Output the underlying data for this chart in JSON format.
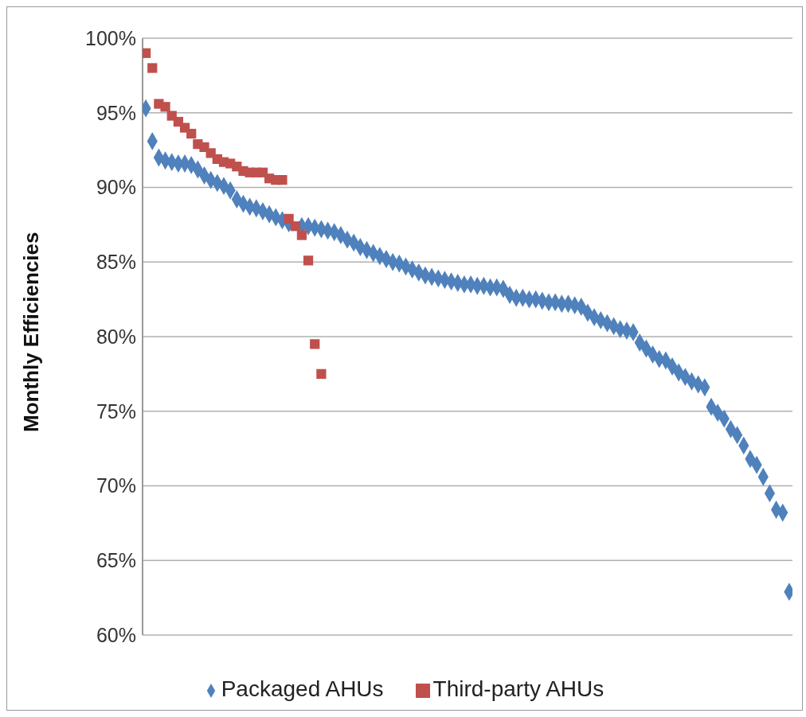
{
  "chart_data": {
    "type": "scatter",
    "ylabel": "Monthly Efficiencies",
    "categories": [
      null,
      null,
      null,
      null,
      null,
      null,
      null,
      null,
      null,
      null,
      null,
      null,
      null,
      null,
      null,
      null,
      null,
      null,
      null,
      null,
      null,
      null,
      null,
      null,
      null,
      null,
      null,
      null,
      null,
      null,
      null,
      null,
      null,
      null,
      null,
      null,
      null,
      null,
      null,
      null,
      null,
      null,
      null,
      null,
      null,
      null,
      null,
      null,
      null,
      null,
      null,
      null,
      null,
      null,
      null,
      null,
      null,
      null,
      null,
      null,
      null,
      null,
      null,
      null,
      null,
      null,
      null,
      null,
      null,
      null,
      null,
      null,
      null,
      null,
      null,
      null,
      null,
      null,
      null,
      null,
      null,
      null,
      null,
      null,
      null,
      null,
      null,
      null,
      null,
      null,
      null,
      null,
      null,
      null,
      null,
      null,
      null,
      null,
      null,
      null
    ],
    "series": [
      {
        "name": "Packaged AHUs",
        "color": "#4f81bd",
        "marker": "diamond",
        "values": [
          95.3,
          93.1,
          92.0,
          91.8,
          91.7,
          91.6,
          91.6,
          91.5,
          91.2,
          90.8,
          90.5,
          90.3,
          90.1,
          89.8,
          89.2,
          88.9,
          88.7,
          88.6,
          88.4,
          88.2,
          88.0,
          87.8,
          87.6,
          null,
          87.4,
          87.4,
          87.3,
          87.2,
          87.1,
          87.0,
          86.8,
          86.5,
          86.3,
          86.0,
          85.8,
          85.6,
          85.4,
          85.2,
          85.0,
          84.9,
          84.7,
          84.5,
          84.3,
          84.1,
          84.0,
          83.9,
          83.8,
          83.7,
          83.6,
          83.5,
          83.5,
          83.4,
          83.4,
          83.3,
          83.3,
          83.2,
          82.8,
          82.6,
          82.6,
          82.5,
          82.5,
          82.4,
          82.3,
          82.3,
          82.2,
          82.2,
          82.1,
          82.0,
          81.6,
          81.3,
          81.1,
          80.9,
          80.7,
          80.5,
          80.4,
          80.3,
          79.6,
          79.2,
          78.8,
          78.5,
          78.4,
          78.0,
          77.6,
          77.3,
          77.0,
          76.8,
          76.6,
          75.3,
          74.9,
          74.5,
          73.8,
          73.4,
          72.7,
          71.8,
          71.4,
          70.6,
          69.5,
          68.4,
          68.2,
          62.9
        ]
      },
      {
        "name": "Third-party AHUs",
        "color": "#c0504d",
        "marker": "square",
        "values": [
          99.0,
          98.0,
          95.6,
          95.4,
          94.8,
          94.4,
          94.0,
          93.6,
          92.9,
          92.7,
          92.3,
          91.9,
          91.7,
          91.6,
          91.4,
          91.1,
          91.0,
          91.0,
          91.0,
          90.6,
          90.5,
          90.5,
          87.9,
          87.4,
          86.8,
          85.1,
          79.5,
          77.5,
          null,
          null,
          null,
          null,
          null,
          null,
          null,
          null,
          null,
          null,
          null,
          null,
          null,
          null,
          null,
          null,
          null,
          null,
          null,
          null,
          null,
          null,
          null,
          null,
          null,
          null,
          null,
          null,
          null,
          null,
          null,
          null,
          null,
          null,
          null,
          null,
          null,
          null,
          null,
          null,
          null,
          null,
          null,
          null,
          null,
          null,
          null,
          null,
          null,
          null,
          null,
          null,
          null,
          null,
          null,
          null,
          null,
          null,
          null,
          null,
          null,
          null,
          null,
          null,
          null,
          null,
          null,
          null,
          null,
          null,
          null,
          null
        ]
      }
    ],
    "ylim": [
      60,
      100
    ],
    "yticks": [
      {
        "value": 60,
        "label": "60%"
      },
      {
        "value": 65,
        "label": "65%"
      },
      {
        "value": 70,
        "label": "70%"
      },
      {
        "value": 75,
        "label": "75%"
      },
      {
        "value": 80,
        "label": "80%"
      },
      {
        "value": 85,
        "label": "85%"
      },
      {
        "value": 90,
        "label": "90%"
      },
      {
        "value": 95,
        "label": "95%"
      },
      {
        "value": 100,
        "label": "100%"
      }
    ],
    "grid": "y",
    "legend": "bottom",
    "tick_labels": "y"
  }
}
